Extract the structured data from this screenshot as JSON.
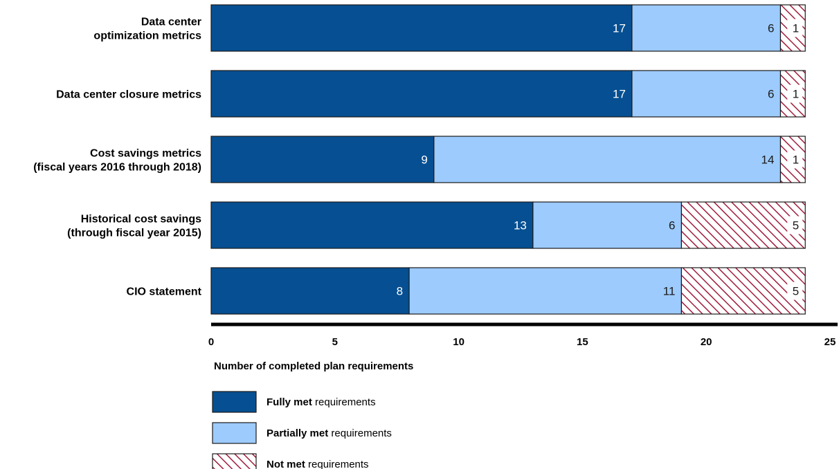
{
  "chart_data": {
    "type": "bar",
    "orientation": "horizontal",
    "stacked": true,
    "categories": [
      [
        "Data center",
        "optimization metrics"
      ],
      [
        "Data center closure metrics"
      ],
      [
        "Cost savings metrics",
        "(fiscal years 2016 through 2018)"
      ],
      [
        "Historical cost savings",
        "(through fiscal year 2015)"
      ],
      [
        "CIO statement"
      ]
    ],
    "series": [
      {
        "name_bold": "Fully met",
        "name_rest": " requirements",
        "color": "#064f92",
        "pattern": "solid",
        "label_color": "#ffffff",
        "values": [
          17,
          17,
          9,
          13,
          8
        ]
      },
      {
        "name_bold": "Partially met",
        "name_rest": " requirements",
        "color": "#9dcbfd",
        "pattern": "solid",
        "label_color": "#1a1a1a",
        "values": [
          6,
          6,
          14,
          6,
          11
        ]
      },
      {
        "name_bold": "Not met",
        "name_rest": " requirements",
        "color": "#a01c3c",
        "pattern": "hatch",
        "label_color": "#1a1a1a",
        "values": [
          1,
          1,
          1,
          5,
          5
        ]
      }
    ],
    "xlim": [
      0,
      25
    ],
    "xticks": [
      0,
      5,
      10,
      15,
      20,
      25
    ],
    "xlabel": "Number of completed plan requirements",
    "ylabel": "",
    "title": "",
    "legend_position": "bottom-left",
    "grid": false
  }
}
